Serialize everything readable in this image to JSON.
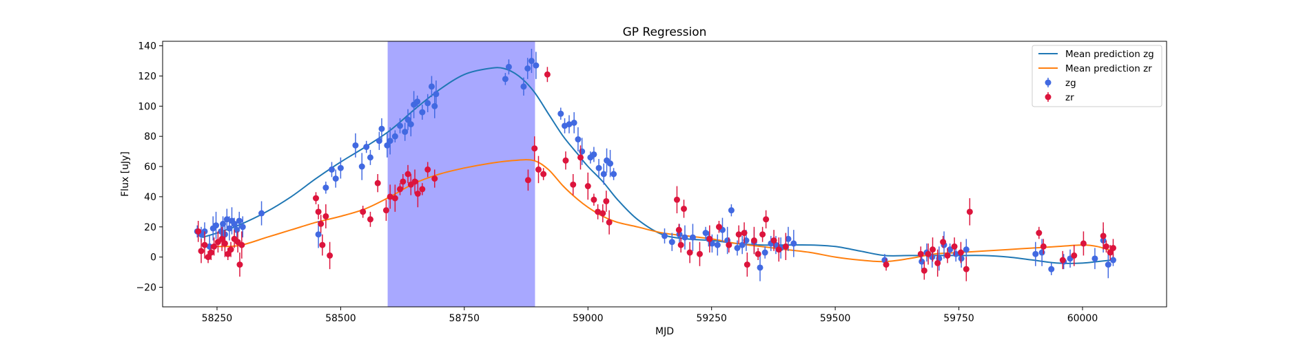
{
  "chart_data": {
    "type": "scatter",
    "title": "GP Regression",
    "xlabel": "MJD",
    "ylabel": "Flux [uJy]",
    "xlim": [
      58140,
      60170
    ],
    "ylim": [
      -33,
      143
    ],
    "xticks": [
      58250,
      58500,
      58750,
      59000,
      59250,
      59500,
      59750,
      60000
    ],
    "yticks": [
      -20,
      0,
      20,
      40,
      60,
      80,
      100,
      120,
      140
    ],
    "shaded_region": {
      "x0": 58595,
      "x1": 58893,
      "color": "#a8a8ff"
    },
    "colors": {
      "zg_line": "#1f77b4",
      "zr_line": "#ff7f0e",
      "zg_points": "#4169e1",
      "zr_points": "#dc143c"
    },
    "legend": {
      "position": "upper right",
      "entries": [
        "Mean prediction zg",
        "Mean prediction zr",
        "zg",
        "zr"
      ]
    },
    "series": [
      {
        "name": "Mean prediction zg",
        "kind": "line",
        "color": "#1f77b4",
        "x": [
          58220,
          58260,
          58300,
          58350,
          58400,
          58450,
          58500,
          58550,
          58600,
          58650,
          58700,
          58750,
          58800,
          58830,
          58860,
          58890,
          58920,
          58950,
          58980,
          59000,
          59030,
          59060,
          59100,
          59150,
          59200,
          59250,
          59300,
          59350,
          59400,
          59450,
          59500,
          59550,
          59600,
          59650,
          59700,
          59750,
          59800,
          59850,
          59900,
          59950,
          60000,
          60030,
          60060
        ],
        "y": [
          13,
          17,
          22,
          30,
          40,
          52,
          63,
          73,
          84,
          98,
          111,
          121,
          125,
          125,
          120,
          110,
          95,
          80,
          68,
          60,
          50,
          38,
          25,
          15,
          12,
          11,
          9,
          8,
          8,
          8,
          7,
          4,
          1,
          1,
          1,
          1,
          1,
          0,
          -2,
          -4,
          -4,
          -3,
          -2
        ]
      },
      {
        "name": "Mean prediction zr",
        "kind": "line",
        "color": "#ff7f0e",
        "x": [
          58220,
          58260,
          58300,
          58350,
          58400,
          58450,
          58500,
          58550,
          58600,
          58650,
          58700,
          58750,
          58800,
          58850,
          58890,
          58920,
          58950,
          58980,
          59000,
          59030,
          59060,
          59100,
          59150,
          59200,
          59250,
          59300,
          59350,
          59400,
          59450,
          59500,
          59550,
          59600,
          59650,
          59700,
          59750,
          59800,
          59850,
          59900,
          59950,
          60000,
          60030,
          60060
        ],
        "y": [
          8,
          7,
          8,
          13,
          18,
          23,
          27,
          32,
          40,
          49,
          55,
          59,
          62,
          64,
          64,
          58,
          47,
          38,
          33,
          27,
          23,
          20,
          16,
          14,
          12,
          9,
          7,
          5,
          3,
          0,
          -2,
          -3,
          -1,
          2,
          3,
          4,
          5,
          6,
          7,
          8,
          7,
          4
        ]
      },
      {
        "name": "zg",
        "kind": "errorbar",
        "color": "#4169e1",
        "x": [
          58210,
          58218,
          58225,
          58235,
          58242,
          58248,
          58258,
          58262,
          58266,
          58270,
          58275,
          58280,
          58285,
          58290,
          58295,
          58302,
          58340,
          58455,
          58470,
          58482,
          58490,
          58500,
          58530,
          58543,
          58552,
          58560,
          58578,
          58583,
          58594,
          58600,
          58610,
          58620,
          58630,
          58636,
          58642,
          58648,
          58655,
          58665,
          58676,
          58684,
          58690,
          58693,
          58833,
          58840,
          58870,
          58878,
          58886,
          58895,
          58945,
          58953,
          58962,
          58972,
          58980,
          58988,
          59005,
          59012,
          59022,
          59032,
          59038,
          59045,
          59052,
          59155,
          59170,
          59185,
          59196,
          59212,
          59238,
          59244,
          59251,
          59262,
          59272,
          59282,
          59290,
          59302,
          59312,
          59320,
          59336,
          59348,
          59358,
          59370,
          59380,
          59390,
          59405,
          59416,
          59600,
          59675,
          59685,
          59696,
          59710,
          59720,
          59732,
          59744,
          59755,
          59765,
          59905,
          59918,
          59937,
          59962,
          59975,
          60025,
          60042,
          60052,
          60062
        ],
        "y": [
          17,
          15,
          17,
          7,
          19,
          21,
          17,
          22,
          15,
          25,
          19,
          24,
          22,
          18,
          24,
          20,
          29,
          15,
          46,
          58,
          52,
          59,
          74,
          60,
          73,
          66,
          77,
          85,
          74,
          77,
          80,
          87,
          83,
          91,
          88,
          101,
          103,
          96,
          102,
          113,
          100,
          108,
          118,
          126,
          113,
          125,
          130,
          127,
          95,
          87,
          88,
          89,
          78,
          70,
          66,
          68,
          59,
          55,
          64,
          62,
          55,
          14,
          10,
          15,
          13,
          13,
          16,
          12,
          9,
          8,
          18,
          11,
          31,
          6,
          8,
          11,
          10,
          -7,
          3,
          9,
          8,
          6,
          12,
          9,
          -2,
          -3,
          3,
          0,
          -1,
          8,
          5,
          2,
          -1,
          5,
          2,
          3,
          -8,
          -3,
          -1,
          -1,
          11,
          -5,
          -2
        ]
      },
      {
        "name": "zr",
        "kind": "errorbar",
        "color": "#dc143c",
        "x": [
          58212,
          58218,
          58225,
          58232,
          58238,
          58244,
          58252,
          58260,
          58266,
          58272,
          58278,
          58285,
          58292,
          58296,
          58300,
          58450,
          58455,
          58460,
          58463,
          58470,
          58478,
          58545,
          58560,
          58575,
          58592,
          58600,
          58610,
          58620,
          58626,
          58636,
          58642,
          58650,
          58656,
          58665,
          58676,
          58690,
          58879,
          58892,
          58900,
          58910,
          58918,
          58955,
          58970,
          58985,
          59000,
          59012,
          59020,
          59030,
          59037,
          59043,
          59180,
          59184,
          59188,
          59194,
          59206,
          59226,
          59246,
          59265,
          59285,
          59305,
          59316,
          59322,
          59336,
          59344,
          59353,
          59360,
          59376,
          59386,
          59400,
          59603,
          59673,
          59680,
          59688,
          59697,
          59707,
          59718,
          59727,
          59741,
          59754,
          59765,
          59772,
          59912,
          59921,
          59960,
          59983,
          60002,
          60042,
          60048,
          60056,
          60062
        ],
        "y": [
          17,
          4,
          8,
          0,
          3,
          7,
          10,
          12,
          9,
          2,
          5,
          12,
          10,
          -5,
          8,
          39,
          30,
          22,
          8,
          27,
          1,
          30,
          25,
          49,
          31,
          40,
          39,
          45,
          50,
          55,
          48,
          50,
          42,
          45,
          58,
          52,
          51,
          72,
          58,
          55,
          121,
          64,
          48,
          66,
          47,
          38,
          30,
          29,
          37,
          23,
          38,
          18,
          8,
          32,
          3,
          2,
          12,
          20,
          8,
          15,
          16,
          -5,
          11,
          2,
          15,
          25,
          11,
          5,
          7,
          -5,
          2,
          -9,
          2,
          5,
          -4,
          10,
          1,
          7,
          3,
          -8,
          30,
          16,
          7,
          -2,
          1,
          9,
          14,
          7,
          3,
          6
        ]
      }
    ]
  }
}
